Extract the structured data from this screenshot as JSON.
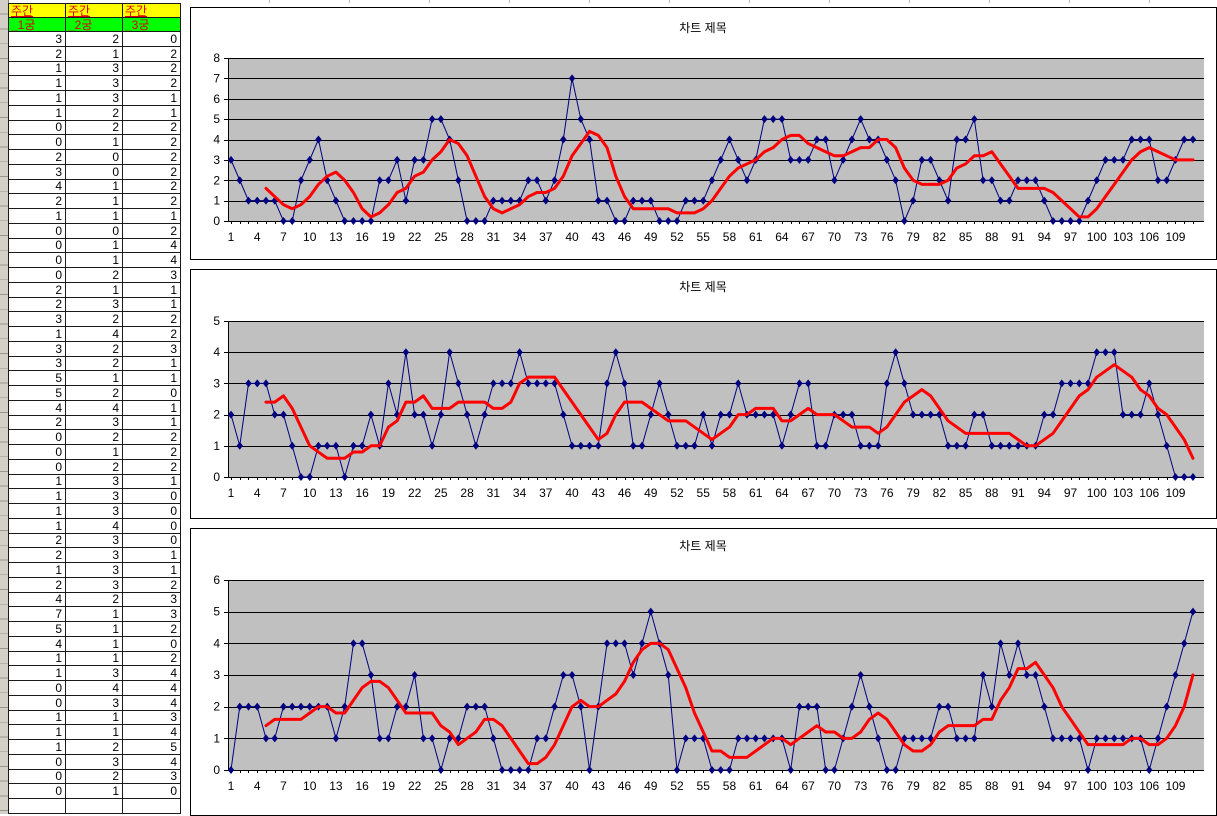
{
  "sheet": {
    "header_row1": [
      "주간",
      "주간",
      "주간"
    ],
    "header_row2": [
      "_1궁",
      "_2궁",
      "_3궁"
    ],
    "rows": [
      [
        3,
        2,
        0
      ],
      [
        2,
        1,
        2
      ],
      [
        1,
        3,
        2
      ],
      [
        1,
        3,
        2
      ],
      [
        1,
        3,
        1
      ],
      [
        1,
        2,
        1
      ],
      [
        0,
        2,
        2
      ],
      [
        0,
        1,
        2
      ],
      [
        2,
        0,
        2
      ],
      [
        3,
        0,
        2
      ],
      [
        4,
        1,
        2
      ],
      [
        2,
        1,
        2
      ],
      [
        1,
        1,
        1
      ],
      [
        0,
        0,
        2
      ],
      [
        0,
        1,
        4
      ],
      [
        0,
        1,
        4
      ],
      [
        0,
        2,
        3
      ],
      [
        2,
        1,
        1
      ],
      [
        2,
        3,
        1
      ],
      [
        3,
        2,
        2
      ],
      [
        1,
        4,
        2
      ],
      [
        3,
        2,
        3
      ],
      [
        3,
        2,
        1
      ],
      [
        5,
        1,
        1
      ],
      [
        5,
        2,
        0
      ],
      [
        4,
        4,
        1
      ],
      [
        2,
        3,
        1
      ],
      [
        0,
        2,
        2
      ],
      [
        0,
        1,
        2
      ],
      [
        0,
        2,
        2
      ],
      [
        1,
        3,
        1
      ],
      [
        1,
        3,
        0
      ],
      [
        1,
        3,
        0
      ],
      [
        1,
        4,
        0
      ],
      [
        2,
        3,
        0
      ],
      [
        2,
        3,
        1
      ],
      [
        1,
        3,
        1
      ],
      [
        2,
        3,
        2
      ],
      [
        4,
        2,
        3
      ],
      [
        7,
        1,
        3
      ],
      [
        5,
        1,
        2
      ],
      [
        4,
        1,
        0
      ],
      [
        1,
        1,
        2
      ],
      [
        1,
        3,
        4
      ],
      [
        0,
        4,
        4
      ],
      [
        0,
        3,
        4
      ],
      [
        1,
        1,
        3
      ],
      [
        1,
        1,
        4
      ],
      [
        1,
        2,
        5
      ],
      [
        0,
        3,
        4
      ],
      [
        0,
        2,
        3
      ],
      [
        0,
        1,
        0
      ]
    ]
  },
  "colors": {
    "header1_bg": "#ffff00",
    "header2_bg": "#00ff00",
    "header_text": "#dd0000",
    "series": "#000080",
    "trendline": "#ff0000",
    "plot_bg": "#c0c0c0",
    "grid": "#000000",
    "row_strip_bg": "#d4d0c8"
  },
  "chart_data": [
    {
      "type": "line",
      "title": "차트 제목",
      "xlabel": "",
      "ylabel": "",
      "ylim": [
        0,
        8
      ],
      "ytick_step": 1,
      "grid": true,
      "legend": "none",
      "x_ticks": [
        1,
        4,
        7,
        10,
        13,
        16,
        19,
        22,
        25,
        28,
        31,
        34,
        37,
        40,
        43,
        46,
        49,
        52,
        55,
        58,
        61,
        64,
        67,
        70,
        73,
        76,
        79,
        82,
        85,
        88,
        91,
        94,
        97,
        100,
        103,
        106,
        109
      ],
      "values": [
        3,
        2,
        1,
        1,
        1,
        1,
        0,
        0,
        2,
        3,
        4,
        2,
        1,
        0,
        0,
        0,
        0,
        2,
        2,
        3,
        1,
        3,
        3,
        5,
        5,
        4,
        2,
        0,
        0,
        0,
        1,
        1,
        1,
        1,
        2,
        2,
        1,
        2,
        4,
        7,
        5,
        4,
        1,
        1,
        0,
        0,
        1,
        1,
        1,
        0,
        0,
        0,
        1,
        1,
        1,
        2,
        3,
        4,
        3,
        2,
        3,
        5,
        5,
        5,
        3,
        3,
        3,
        4,
        4,
        2,
        3,
        4,
        5,
        4,
        4,
        3,
        2,
        0,
        1,
        3,
        3,
        2,
        1,
        4,
        4,
        5,
        2,
        2,
        1,
        1,
        2,
        2,
        2,
        1,
        0,
        0,
        0,
        0,
        1,
        2,
        3,
        3,
        3,
        4,
        4,
        4,
        2,
        2,
        3,
        4,
        4
      ],
      "trendline": {
        "type": "moving_average",
        "period": 5
      }
    },
    {
      "type": "line",
      "title": "차트 제목",
      "xlabel": "",
      "ylabel": "",
      "ylim": [
        0,
        5
      ],
      "ytick_step": 1,
      "grid": true,
      "legend": "none",
      "x_ticks": [
        1,
        4,
        7,
        10,
        13,
        16,
        19,
        22,
        25,
        28,
        31,
        34,
        37,
        40,
        43,
        46,
        49,
        52,
        55,
        58,
        61,
        64,
        67,
        70,
        73,
        76,
        79,
        82,
        85,
        88,
        91,
        94,
        97,
        100,
        103,
        106,
        109
      ],
      "values": [
        2,
        1,
        3,
        3,
        3,
        2,
        2,
        1,
        0,
        0,
        1,
        1,
        1,
        0,
        1,
        1,
        2,
        1,
        3,
        2,
        4,
        2,
        2,
        1,
        2,
        4,
        3,
        2,
        1,
        2,
        3,
        3,
        3,
        4,
        3,
        3,
        3,
        3,
        2,
        1,
        1,
        1,
        1,
        3,
        4,
        3,
        1,
        1,
        2,
        3,
        2,
        1,
        1,
        1,
        2,
        1,
        2,
        2,
        3,
        2,
        2,
        2,
        2,
        1,
        2,
        3,
        3,
        1,
        1,
        2,
        2,
        2,
        1,
        1,
        1,
        3,
        4,
        3,
        2,
        2,
        2,
        2,
        1,
        1,
        1,
        2,
        2,
        1,
        1,
        1,
        1,
        1,
        1,
        2,
        2,
        3,
        3,
        3,
        3,
        4,
        4,
        4,
        2,
        2,
        2,
        3,
        2,
        1,
        0,
        0,
        0
      ],
      "trendline": {
        "type": "moving_average",
        "period": 5
      }
    },
    {
      "type": "line",
      "title": "차트 제목",
      "xlabel": "",
      "ylabel": "",
      "ylim": [
        0,
        6
      ],
      "ytick_step": 1,
      "grid": true,
      "legend": "none",
      "x_ticks": [
        1,
        4,
        7,
        10,
        13,
        16,
        19,
        22,
        25,
        28,
        31,
        34,
        37,
        40,
        43,
        46,
        49,
        52,
        55,
        58,
        61,
        64,
        67,
        70,
        73,
        76,
        79,
        82,
        85,
        88,
        91,
        94,
        97,
        100,
        103,
        106,
        109
      ],
      "values": [
        0,
        2,
        2,
        2,
        1,
        1,
        2,
        2,
        2,
        2,
        2,
        2,
        1,
        2,
        4,
        4,
        3,
        1,
        1,
        2,
        2,
        3,
        1,
        1,
        0,
        1,
        1,
        2,
        2,
        2,
        1,
        0,
        0,
        0,
        0,
        1,
        1,
        2,
        3,
        3,
        2,
        0,
        2,
        4,
        4,
        4,
        3,
        4,
        5,
        4,
        3,
        0,
        1,
        1,
        1,
        0,
        0,
        0,
        1,
        1,
        1,
        1,
        1,
        1,
        0,
        2,
        2,
        2,
        0,
        0,
        1,
        2,
        3,
        2,
        1,
        0,
        0,
        1,
        1,
        1,
        1,
        2,
        2,
        1,
        1,
        1,
        3,
        2,
        4,
        3,
        4,
        3,
        3,
        2,
        1,
        1,
        1,
        1,
        0,
        1,
        1,
        1,
        1,
        1,
        1,
        0,
        1,
        2,
        3,
        4,
        5
      ],
      "trendline": {
        "type": "moving_average",
        "period": 5
      }
    }
  ]
}
